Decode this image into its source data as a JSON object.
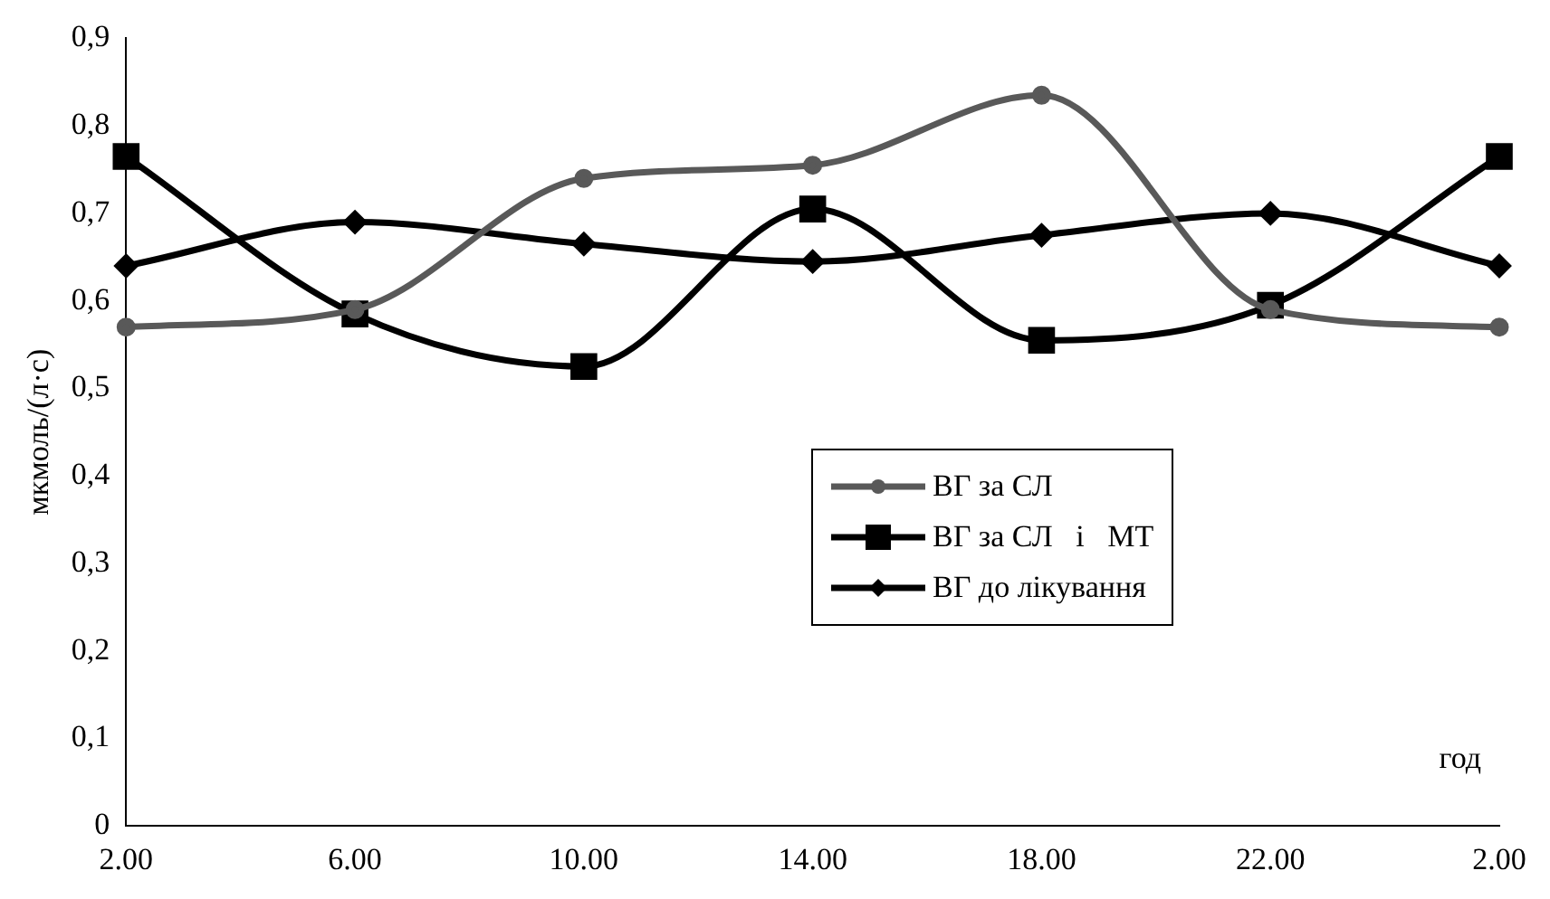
{
  "chart_data": {
    "type": "line",
    "ylabel": "мкмоль/(л·с)",
    "xlabel": "год",
    "categories": [
      "2.00",
      "6.00",
      "10.00",
      "14.00",
      "18.00",
      "22.00",
      "2.00"
    ],
    "ylim": [
      0,
      0.9
    ],
    "yticks": [
      {
        "value": 0,
        "label": "0"
      },
      {
        "value": 0.1,
        "label": "0,1"
      },
      {
        "value": 0.2,
        "label": "0,2"
      },
      {
        "value": 0.3,
        "label": "0,3"
      },
      {
        "value": 0.4,
        "label": "0,4"
      },
      {
        "value": 0.5,
        "label": "0,5"
      },
      {
        "value": 0.6,
        "label": "0,6"
      },
      {
        "value": 0.7,
        "label": "0,7"
      },
      {
        "value": 0.8,
        "label": "0,8"
      },
      {
        "value": 0.9,
        "label": "0,9"
      }
    ],
    "grid": false,
    "legend": "center",
    "series": [
      {
        "name": "ВГ за СЛ",
        "color": "#595959",
        "marker": "circle",
        "values": [
          0.57,
          0.59,
          0.74,
          0.755,
          0.835,
          0.59,
          0.57
        ]
      },
      {
        "name": "ВГ за СЛ   і   МТ",
        "color": "#000000",
        "marker": "square",
        "values": [
          0.765,
          0.585,
          0.525,
          0.705,
          0.555,
          0.595,
          0.765
        ]
      },
      {
        "name": "ВГ до лікування",
        "color": "#000000",
        "marker": "diamond",
        "values": [
          0.64,
          0.69,
          0.665,
          0.645,
          0.675,
          0.7,
          0.64
        ]
      }
    ]
  }
}
